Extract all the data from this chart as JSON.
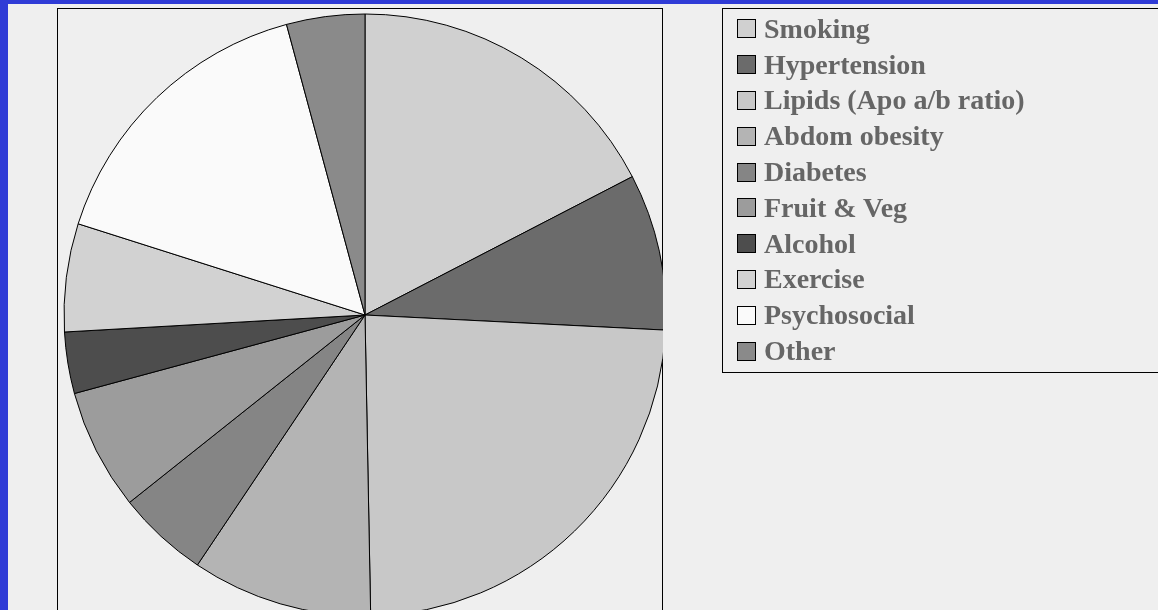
{
  "chart_data": {
    "type": "pie",
    "categories": [
      "Smoking",
      "Hypertension",
      "Lipids (Apo a/b ratio)",
      "Abdom obesity",
      "Diabetes",
      "Fruit & Veg",
      "Alcohol",
      "Exercise",
      "Psychosocial",
      "Other"
    ],
    "values": [
      17.4,
      8.4,
      23.9,
      9.7,
      4.9,
      6.5,
      3.3,
      5.8,
      15.9,
      4.2
    ],
    "colors": [
      "#d0d0d0",
      "#6b6b6b",
      "#c8c8c8",
      "#b4b4b4",
      "#858585",
      "#9c9c9c",
      "#4d4d4d",
      "#d2d2d2",
      "#fafafa",
      "#8a8a8a"
    ],
    "legend": "right"
  }
}
